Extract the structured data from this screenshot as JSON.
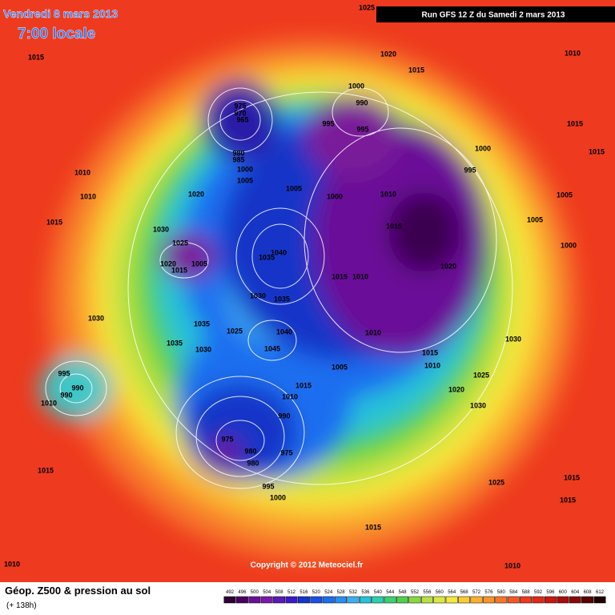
{
  "header": {
    "date": "Vendredi 8 mars 2013",
    "time": "7:00 locale",
    "run": "Run GFS 12 Z du Samedi 2 mars 2013"
  },
  "pressure_labels": [
    1025,
    1015,
    1020,
    1015,
    1010,
    1000,
    990,
    975,
    970,
    965,
    995,
    995,
    1015,
    1015,
    1000,
    995,
    980,
    985,
    1000,
    1005,
    1005,
    1010,
    1010,
    1020,
    1000,
    1010,
    1005,
    1015,
    1005,
    1030,
    1025,
    1040,
    1035,
    1015,
    1000,
    1020,
    1015,
    1005,
    1020,
    1015,
    1010,
    1030,
    1035,
    1030,
    1035,
    1025,
    1040,
    1010,
    1035,
    1030,
    1045,
    1030,
    1015,
    1010,
    1005,
    1025,
    995,
    990,
    1015,
    1020,
    990,
    1010,
    1010,
    1030,
    990,
    975,
    980,
    975,
    980,
    1015,
    995,
    1025,
    1015,
    1000,
    1015,
    1015,
    1010,
    1010
  ],
  "footer": {
    "copyright": "Copyright © 2012 Meteociel.fr",
    "title": "Géop. Z500 & pression au sol",
    "forecast": "(+ 138h)"
  },
  "legend": {
    "ticks": [
      492,
      496,
      500,
      504,
      508,
      512,
      516,
      520,
      524,
      528,
      532,
      536,
      540,
      544,
      548,
      552,
      556,
      560,
      564,
      568,
      572,
      576,
      580,
      584,
      588,
      592,
      596,
      600,
      604,
      608,
      612
    ]
  }
}
